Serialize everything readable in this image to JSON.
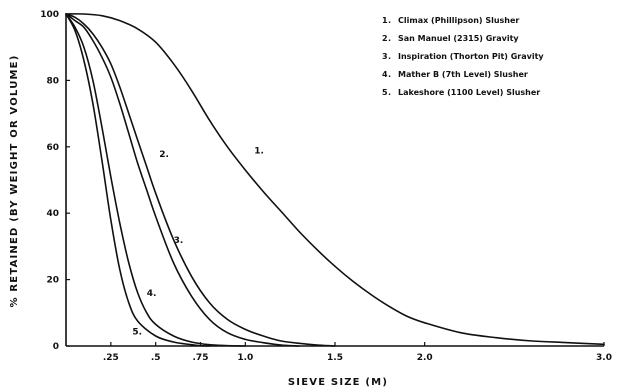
{
  "chart_data": {
    "type": "line",
    "xlabel": "SIEVE  SIZE (M)",
    "ylabel": "% RETAINED (BY WEIGHT OR VOLUME)",
    "xlim": [
      0,
      3.0
    ],
    "ylim": [
      0,
      100
    ],
    "x_ticks": [
      {
        "value": 0.25,
        "label": ".25"
      },
      {
        "value": 0.5,
        "label": ".5"
      },
      {
        "value": 0.75,
        "label": ".75"
      },
      {
        "value": 1.0,
        "label": "1.0"
      },
      {
        "value": 1.5,
        "label": "1.5"
      },
      {
        "value": 2.0,
        "label": "2.0"
      },
      {
        "value": 3.0,
        "label": "3.0"
      }
    ],
    "y_ticks": [
      {
        "value": 0,
        "label": "0"
      },
      {
        "value": 20,
        "label": "20"
      },
      {
        "value": 40,
        "label": "40"
      },
      {
        "value": 60,
        "label": "60"
      },
      {
        "value": 80,
        "label": "80"
      },
      {
        "value": 100,
        "label": "100"
      }
    ],
    "grid": false,
    "legend_position": "top-right",
    "series": [
      {
        "name": "Climax (Phillipson) Slusher",
        "number": "1",
        "label": "1.",
        "label_at": [
          1.05,
          58
        ],
        "x": [
          0,
          0.1,
          0.2,
          0.3,
          0.4,
          0.5,
          0.6,
          0.7,
          0.8,
          0.9,
          1.0,
          1.1,
          1.2,
          1.3,
          1.4,
          1.5,
          1.6,
          1.7,
          1.8,
          1.9,
          2.0,
          2.2,
          2.4,
          2.6,
          2.8,
          3.0
        ],
        "y": [
          100,
          100,
          99.5,
          98,
          95.5,
          91.5,
          85,
          77,
          68,
          60,
          53,
          46.5,
          40.5,
          34.5,
          29,
          24,
          19.5,
          15.5,
          12,
          9,
          7,
          4,
          2.5,
          1.5,
          1,
          0.5
        ]
      },
      {
        "name": "San Manuel (2315) Gravity",
        "number": "2",
        "label": "2.",
        "label_at": [
          0.52,
          57
        ],
        "x": [
          0,
          0.05,
          0.1,
          0.15,
          0.2,
          0.25,
          0.3,
          0.35,
          0.4,
          0.45,
          0.5,
          0.6,
          0.7,
          0.8,
          0.9,
          1.0,
          1.1,
          1.2,
          1.3,
          1.4,
          1.5
        ],
        "y": [
          100,
          99,
          97,
          94,
          90,
          85,
          78,
          70,
          62,
          54,
          46,
          32,
          21,
          13,
          8,
          5,
          3,
          1.5,
          0.8,
          0.3,
          0
        ]
      },
      {
        "name": "Inspiration (Thorton Pit) Gravity",
        "number": "3",
        "label": "3.",
        "label_at": [
          0.6,
          31
        ],
        "x": [
          0,
          0.05,
          0.1,
          0.15,
          0.2,
          0.25,
          0.3,
          0.35,
          0.4,
          0.45,
          0.5,
          0.6,
          0.7,
          0.8,
          0.9,
          1.0,
          1.1,
          1.2,
          1.3
        ],
        "y": [
          100,
          98,
          96,
          92,
          87,
          81,
          73,
          64,
          55,
          47,
          39,
          25,
          15,
          8,
          4,
          2,
          1,
          0.3,
          0
        ]
      },
      {
        "name": "Mather B (7th Level) Slusher",
        "number": "4",
        "label": "4.",
        "label_at": [
          0.45,
          15
        ],
        "x": [
          0,
          0.05,
          0.1,
          0.15,
          0.2,
          0.25,
          0.3,
          0.35,
          0.4,
          0.45,
          0.5,
          0.6,
          0.7,
          0.8,
          0.9,
          1.0
        ],
        "y": [
          100,
          96,
          90,
          80,
          66,
          51,
          37,
          25,
          16,
          10,
          6.5,
          3,
          1.2,
          0.4,
          0.1,
          0
        ]
      },
      {
        "name": "Lakeshore (1100 Level) Slusher",
        "number": "5",
        "label": "5.",
        "label_at": [
          0.37,
          3.5
        ],
        "x": [
          0,
          0.05,
          0.1,
          0.15,
          0.2,
          0.25,
          0.3,
          0.35,
          0.4,
          0.5,
          0.6,
          0.7,
          0.75,
          0.8
        ],
        "y": [
          100,
          95,
          86,
          73,
          56,
          38,
          23,
          13,
          7.5,
          3,
          1.2,
          0.4,
          0.1,
          0
        ]
      }
    ]
  }
}
